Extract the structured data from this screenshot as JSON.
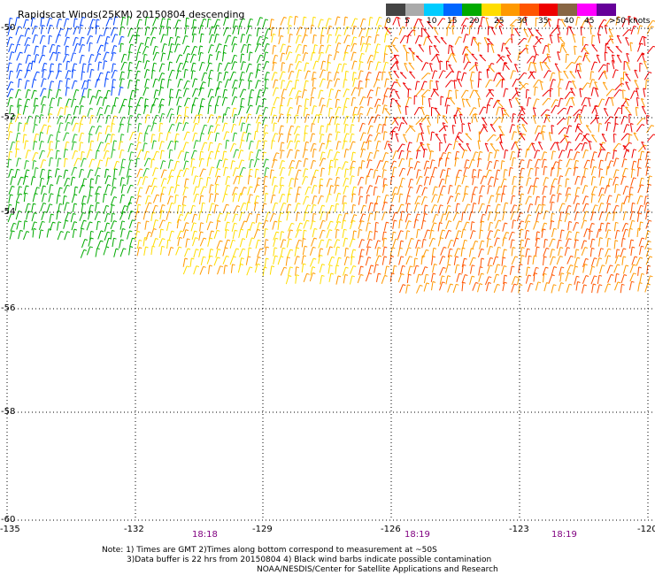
{
  "title": "Rapidscat Winds(25KM) 20150804 descending",
  "legend": {
    "labels": [
      "0",
      "5",
      "10",
      "15",
      "20",
      "25",
      "30",
      "35",
      "40",
      "45",
      ">50 knots"
    ],
    "colors": [
      "#444444",
      "#aaaaaa",
      "#00ccff",
      "#0066ff",
      "#00aa00",
      "#ffdd00",
      "#ff9900",
      "#ff5500",
      "#ee0000",
      "#886644",
      "#ff00ff",
      "#660099"
    ]
  },
  "axes": {
    "lat_labels": [
      "-50",
      "-52",
      "-54",
      "-56",
      "-58",
      "-60"
    ],
    "lon_labels": [
      "-135",
      "-132",
      "-129",
      "-126",
      "-123",
      "-120"
    ]
  },
  "times": [
    "18:18",
    "18:19",
    "18:19"
  ],
  "notes": {
    "line1": "Note: 1) Times are GMT 2)Times along bottom correspond to measurement at ~50S",
    "line2": "3)Data buffer is 22 hrs from 20150804 4) Black wind barbs indicate possible contamination",
    "line3": "NOAA/NESDIS/Center for Satellite Applications and Research"
  }
}
